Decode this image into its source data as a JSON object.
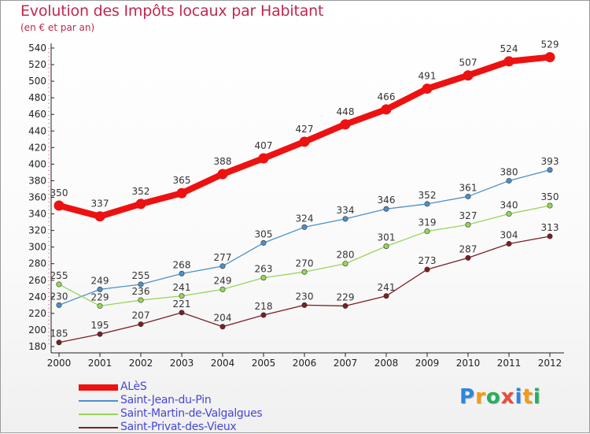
{
  "header": {
    "title": "Evolution des Impôts locaux par Habitant",
    "subtitle": "(en € et par an)"
  },
  "logo": {
    "text": "Proxiti",
    "letters": [
      {
        "ch": "P",
        "color": "#2e86de"
      },
      {
        "ch": "r",
        "color": "#f39c12"
      },
      {
        "ch": "o",
        "color": "#27ae60"
      },
      {
        "ch": "x",
        "color": "#e74c3c"
      },
      {
        "ch": "i",
        "color": "#2e86de"
      },
      {
        "ch": "t",
        "color": "#f39c12"
      },
      {
        "ch": "i",
        "color": "#27ae60"
      }
    ]
  },
  "chart_data": {
    "type": "line",
    "x": [
      "2000",
      "2001",
      "2002",
      "2003",
      "2004",
      "2005",
      "2006",
      "2007",
      "2008",
      "2009",
      "2010",
      "2011",
      "2012"
    ],
    "ylim": [
      180,
      540
    ],
    "yticks": [
      180,
      200,
      220,
      240,
      260,
      280,
      300,
      320,
      340,
      360,
      380,
      400,
      420,
      440,
      460,
      480,
      500,
      520,
      540
    ],
    "grid": false,
    "legend_position": "bottom-left",
    "title": "Evolution des Impôts locaux par Habitant",
    "subtitle": "(en € et par an)",
    "series": [
      {
        "name": "ALèS",
        "color": "#ee1111",
        "values": [
          350,
          337,
          352,
          365,
          388,
          407,
          427,
          448,
          466,
          491,
          507,
          524,
          529
        ]
      },
      {
        "name": "Saint-Jean-du-Pin",
        "color": "#4d90c8",
        "values": [
          230,
          249,
          255,
          268,
          277,
          305,
          324,
          334,
          346,
          352,
          361,
          380,
          393
        ]
      },
      {
        "name": "Saint-Martin-de-Valgalgues",
        "color": "#96d65a",
        "values": [
          255,
          229,
          236,
          241,
          249,
          263,
          270,
          280,
          301,
          319,
          327,
          340,
          350
        ]
      },
      {
        "name": "Saint-Privat-des-Vieux",
        "color": "#7a1f24",
        "values": [
          185,
          195,
          207,
          221,
          204,
          218,
          230,
          229,
          241,
          273,
          287,
          304,
          313
        ]
      }
    ]
  }
}
